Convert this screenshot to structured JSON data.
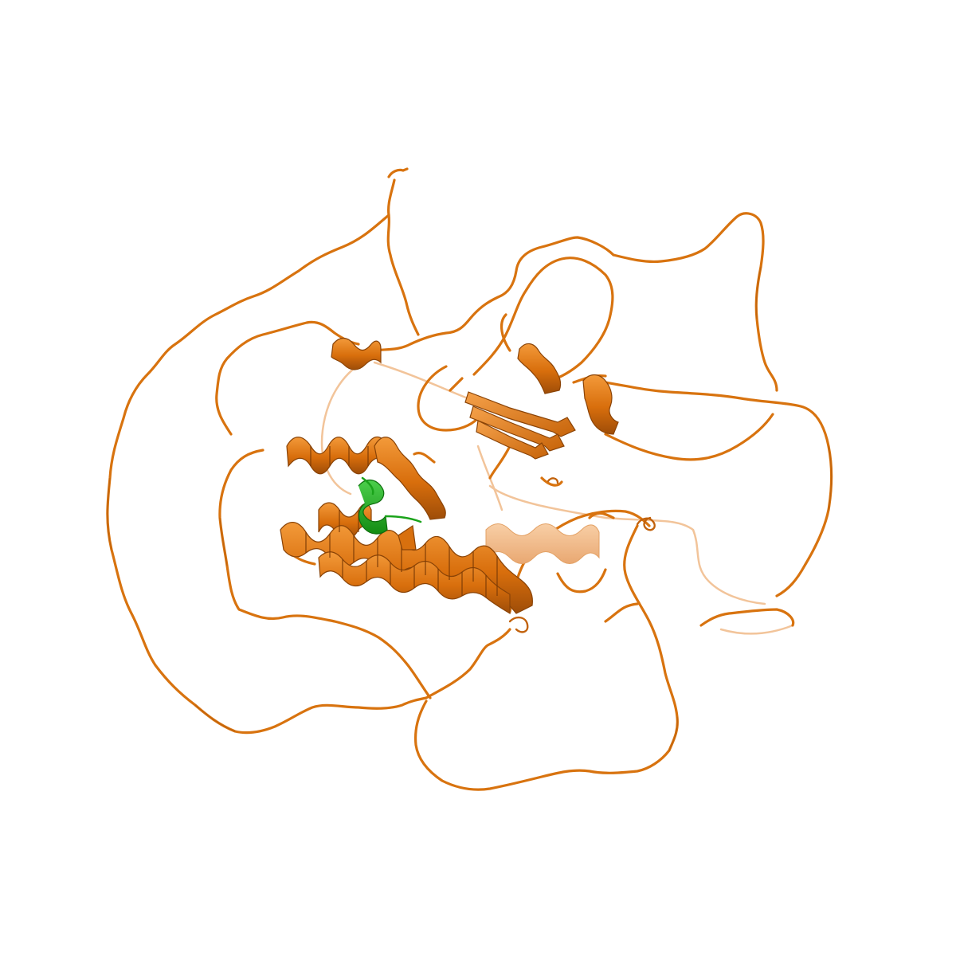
{
  "scene": {
    "kind": "protein cartoon render",
    "background": "#ffffff",
    "colors": {
      "main_chain": "#e07a14",
      "main_chain_dark": "#a9530a",
      "main_chain_faded": "#f1b47a",
      "secondary_chain": "#1aa31a",
      "secondary_chain_dark": "#0e6e0e"
    }
  }
}
